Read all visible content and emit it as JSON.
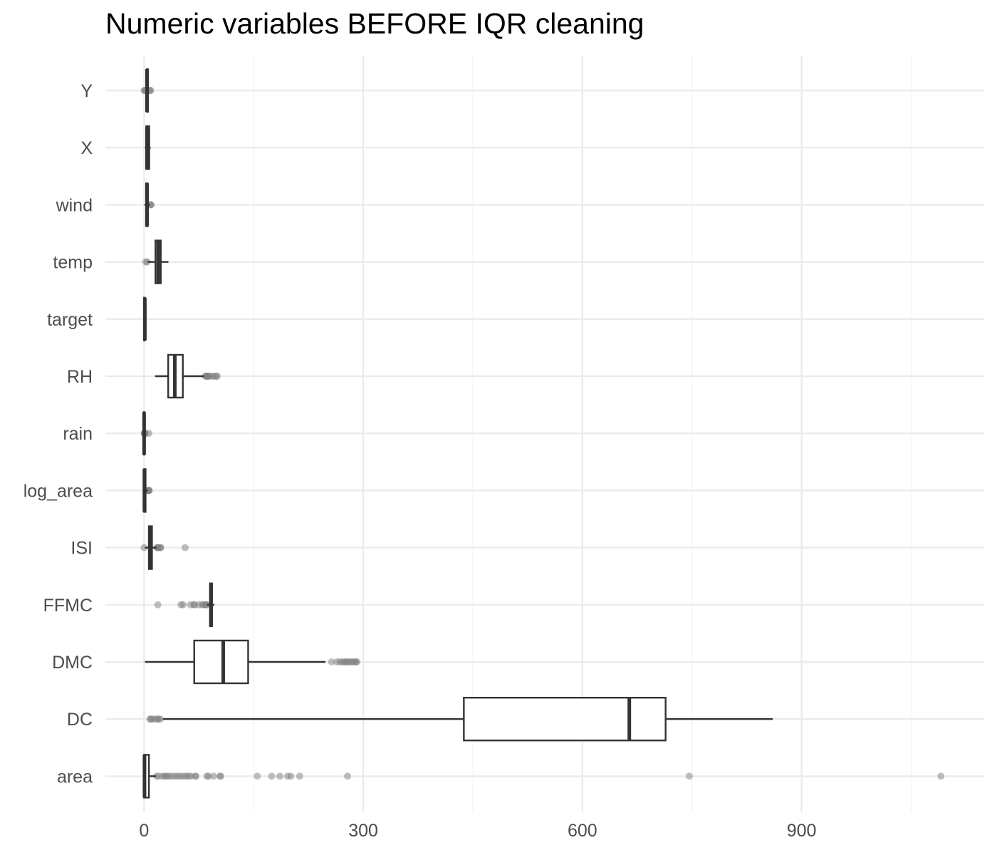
{
  "chart_data": {
    "type": "boxplot",
    "orientation": "horizontal",
    "title": "Numeric variables BEFORE IQR cleaning",
    "xlabel": "",
    "ylabel": "",
    "xlim": [
      -53,
      1150
    ],
    "x_ticks": [
      0,
      300,
      600,
      900
    ],
    "x_tick_labels": [
      "0",
      "300",
      "600",
      "900"
    ],
    "grid": true,
    "legend": "none",
    "colors": {
      "box": "#333333",
      "outlier": "#808080",
      "grid_major": "#ebebeb",
      "grid_minor": "#f2f2f2"
    },
    "categories": [
      "Y",
      "X",
      "wind",
      "temp",
      "target",
      "RH",
      "rain",
      "log_area",
      "ISI",
      "FFMC",
      "DMC",
      "DC",
      "area"
    ],
    "boxes": [
      {
        "name": "Y",
        "whisker_low": 2,
        "q1": 4,
        "median": 4,
        "q3": 5,
        "whisker_high": 6,
        "outliers": [
          0,
          1,
          2,
          7,
          8,
          9
        ]
      },
      {
        "name": "X",
        "whisker_low": 1,
        "q1": 3,
        "median": 4,
        "q3": 7,
        "whisker_high": 9,
        "outliers": []
      },
      {
        "name": "wind",
        "whisker_low": 0.4,
        "q1": 2.7,
        "median": 4.0,
        "q3": 4.9,
        "whisker_high": 8.0,
        "outliers": [
          8.5,
          8.9,
          9.4
        ]
      },
      {
        "name": "temp",
        "whisker_low": 4.8,
        "q1": 15.5,
        "median": 19.3,
        "q3": 22.8,
        "whisker_high": 33.3,
        "outliers": [
          2.2,
          4.2
        ]
      },
      {
        "name": "target",
        "whisker_low": 0,
        "q1": 0,
        "median": 1,
        "q3": 1,
        "whisker_high": 1,
        "outliers": []
      },
      {
        "name": "RH",
        "whisker_low": 15,
        "q1": 33,
        "median": 42,
        "q3": 53,
        "whisker_high": 82,
        "outliers": [
          84,
          85,
          86,
          87,
          88,
          90,
          94,
          96,
          99,
          100
        ]
      },
      {
        "name": "rain",
        "whisker_low": 0,
        "q1": 0,
        "median": 0,
        "q3": 0,
        "whisker_high": 0,
        "outliers": [
          0.2,
          0.4,
          0.8,
          1.0,
          1.4,
          6.4
        ]
      },
      {
        "name": "log_area",
        "whisker_low": 0,
        "q1": 0,
        "median": 0.4,
        "q3": 2.0,
        "whisker_high": 5.0,
        "outliers": [
          5.4,
          5.6,
          6.0,
          6.6,
          7.0
        ]
      },
      {
        "name": "ISI",
        "whisker_low": 1.0,
        "q1": 6.5,
        "median": 8.4,
        "q3": 10.8,
        "whisker_high": 17.0,
        "outliers": [
          0,
          17.9,
          18.0,
          19.0,
          20.0,
          22.6,
          22.7,
          56.1
        ]
      },
      {
        "name": "FFMC",
        "whisker_low": 86.2,
        "q1": 90.2,
        "median": 91.6,
        "q3": 92.9,
        "whisker_high": 96.2,
        "outliers": [
          18.7,
          50.4,
          53.4,
          63.5,
          68.2,
          69.0,
          75.1,
          79.5,
          81.5,
          83.9,
          84.9,
          85.8
        ]
      },
      {
        "name": "DMC",
        "whisker_low": 1.1,
        "q1": 68.6,
        "median": 108.3,
        "q3": 142.4,
        "whisker_high": 248.3,
        "outliers": [
          256.7,
          264.0,
          268.0,
          271.0,
          274.0,
          276.0,
          278.0,
          280.0,
          283.0,
          285.0,
          288.0,
          290.0,
          291.3
        ]
      },
      {
        "name": "DC",
        "whisker_low": 25.6,
        "q1": 437.7,
        "median": 664.2,
        "q3": 713.9,
        "whisker_high": 860.6,
        "outliers": [
          7.9,
          9.3,
          11.0,
          15.0,
          18.0,
          20.0,
          22.0
        ]
      },
      {
        "name": "area",
        "whisker_low": 0,
        "q1": 0,
        "median": 0.52,
        "q3": 6.57,
        "whisker_high": 16.4,
        "outliers": [
          17,
          20,
          25,
          28,
          30,
          33,
          36,
          40,
          44,
          47,
          51,
          55,
          58,
          61,
          64,
          70,
          71,
          86,
          88,
          95,
          103.7,
          105,
          154.9,
          174.6,
          185.8,
          196.5,
          200.9,
          212.9,
          278.5,
          746.3,
          1090.8
        ]
      }
    ]
  }
}
